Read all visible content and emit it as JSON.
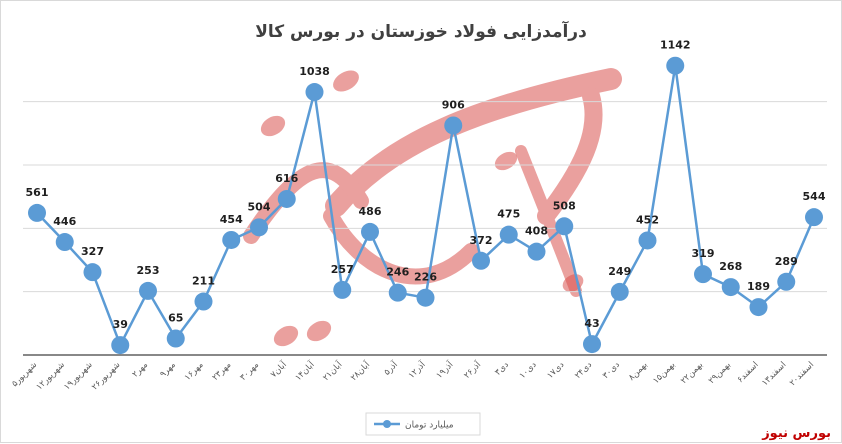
{
  "chart_data": {
    "type": "line",
    "title": "درآمدزایی فولاد خوزستان در بورس کالا",
    "categories": [
      "۵شهریور",
      "۱۲شهریور",
      "۱۹شهریور",
      "۲۶شهریور",
      "۲مهر",
      "۹مهر",
      "۱۶مهر",
      "۲۳مهر",
      "۳۰مهر",
      "۷آبان",
      "۱۴آبان",
      "۲۱آبان",
      "۲۸آبان",
      "۵آذر",
      "۱۲آذر",
      "۱۹آذر",
      "۲۶آذر",
      "۳دی",
      "۱۰دی",
      "۱۷دی",
      "۲۴دی",
      "۳۰دی",
      "۸بهمن",
      "۱۵بهمن",
      "۲۲بهمن",
      "۲۹بهمن",
      "۶اسفند",
      "۱۳اسفند",
      "۲۰اسفند"
    ],
    "series": [
      {
        "name": "میلیارد تومان",
        "color": "#5b9bd5",
        "values": [
          561,
          446,
          327,
          39,
          253,
          65,
          211,
          454,
          504,
          616,
          1038,
          257,
          486,
          246,
          226,
          906,
          372,
          475,
          408,
          508,
          43,
          249,
          452,
          1142,
          319,
          268,
          189,
          289,
          544
        ]
      }
    ],
    "ylim": [
      0,
      1200
    ],
    "grid": true,
    "legend_position": "bottom"
  },
  "watermark": {
    "text": "بورس نیوز",
    "color": "#c00000"
  }
}
